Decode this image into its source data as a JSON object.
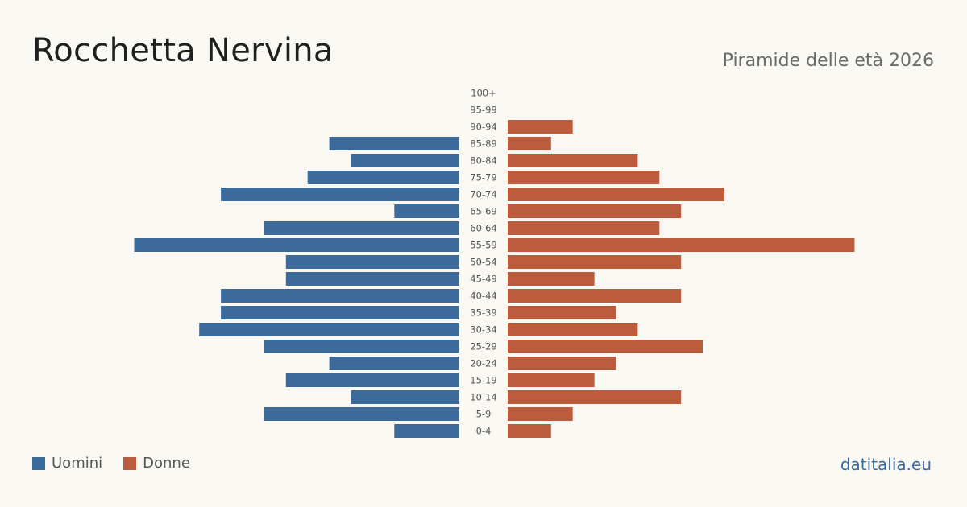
{
  "title": "Rocchetta Nervina",
  "subtitle": "Piramide delle età 2026",
  "brand": "datitalia.eu",
  "colors": {
    "men": "#3b6a9b",
    "women": "#bb5d3c",
    "background": "#faf8f3"
  },
  "legend": {
    "men_label": "Uomini",
    "women_label": "Donne"
  },
  "chart_data": {
    "type": "bar",
    "orientation": "horizontal-pyramid",
    "title": "Rocchetta Nervina",
    "subtitle": "Piramide delle età 2026",
    "categories": [
      "100+",
      "95-99",
      "90-94",
      "85-89",
      "80-84",
      "75-79",
      "70-74",
      "65-69",
      "60-64",
      "55-59",
      "50-54",
      "45-49",
      "40-44",
      "35-39",
      "30-34",
      "25-29",
      "20-24",
      "15-19",
      "10-14",
      "5-9",
      "0-4"
    ],
    "series": [
      {
        "name": "Uomini",
        "color": "#3b6a9b",
        "values": [
          0,
          0,
          0,
          6,
          5,
          7,
          11,
          3,
          9,
          15,
          8,
          8,
          11,
          11,
          12,
          9,
          6,
          8,
          5,
          9,
          3
        ]
      },
      {
        "name": "Donne",
        "color": "#bb5d3c",
        "values": [
          0,
          0,
          3,
          2,
          6,
          7,
          10,
          8,
          7,
          16,
          8,
          4,
          8,
          5,
          6,
          9,
          5,
          4,
          8,
          3,
          2
        ]
      }
    ],
    "legend_position": "bottom-left",
    "grid": false
  }
}
